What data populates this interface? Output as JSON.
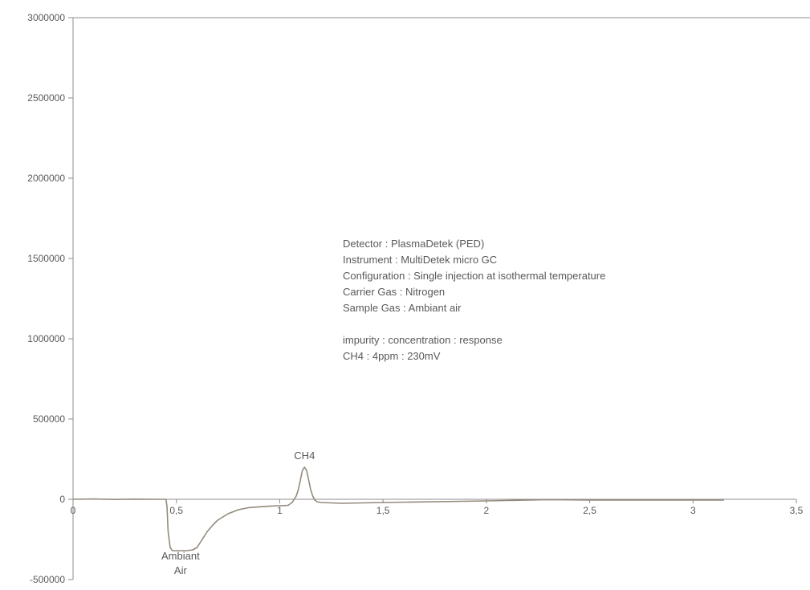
{
  "chart_data": {
    "type": "line",
    "title": "",
    "xlabel": "",
    "ylabel": "",
    "xlim": [
      0,
      3.5
    ],
    "ylim": [
      -500000,
      3000000
    ],
    "x_ticks": [
      0,
      0.5,
      1,
      1.5,
      2,
      2.5,
      3,
      3.5
    ],
    "x_tick_labels": [
      "0",
      "0,5",
      "1",
      "1,5",
      "2",
      "2,5",
      "3",
      "3,5"
    ],
    "y_ticks": [
      -500000,
      0,
      500000,
      1000000,
      1500000,
      2000000,
      2500000,
      3000000
    ],
    "y_tick_labels": [
      "-500000",
      "0",
      "500000",
      "1000000",
      "1500000",
      "2000000",
      "2500000",
      "3000000"
    ],
    "grid": false,
    "legend": "none",
    "colors": {
      "line": "#948a7c",
      "axis": "#8c8c8c",
      "text": "#595959"
    },
    "series": [
      {
        "x": [
          0,
          0.1,
          0.2,
          0.3,
          0.4,
          0.45,
          0.455,
          0.46,
          0.47,
          0.48,
          0.5,
          0.55,
          0.58,
          0.6,
          0.62,
          0.65,
          0.68,
          0.7,
          0.75,
          0.8,
          0.85,
          0.9,
          0.95,
          1.0,
          1.04,
          1.06,
          1.08,
          1.09,
          1.1,
          1.11,
          1.12,
          1.13,
          1.14,
          1.15,
          1.16,
          1.17,
          1.18,
          1.2,
          1.3,
          1.5,
          2.0,
          2.3,
          2.5,
          3.0,
          3.15
        ],
        "y": [
          0,
          2000,
          -1000,
          1000,
          0,
          0,
          -50000,
          -200000,
          -300000,
          -320000,
          -320000,
          -320000,
          -315000,
          -300000,
          -260000,
          -200000,
          -155000,
          -130000,
          -90000,
          -65000,
          -52000,
          -47000,
          -43000,
          -40000,
          -38000,
          -20000,
          20000,
          60000,
          120000,
          180000,
          200000,
          180000,
          120000,
          60000,
          20000,
          -5000,
          -15000,
          -20000,
          -25000,
          -20000,
          -10000,
          -2000,
          -5000,
          -5000,
          -5000
        ]
      }
    ],
    "annotations": [
      {
        "text": "CH4",
        "x": 1.12,
        "y": 250000
      },
      {
        "text": "Ambiant",
        "x": 0.52,
        "y": -375000
      },
      {
        "text": "Air",
        "x": 0.52,
        "y": -465000
      }
    ],
    "notes": [
      "Detector : PlasmaDetek (PED)",
      "Instrument : MultiDetek micro GC",
      "Configuration : Single injection at isothermal temperature",
      "Carrier Gas : Nitrogen",
      "Sample Gas :  Ambiant air",
      "",
      "impurity :  concentration : response",
      "CH4 : 4ppm  : 230mV"
    ]
  }
}
